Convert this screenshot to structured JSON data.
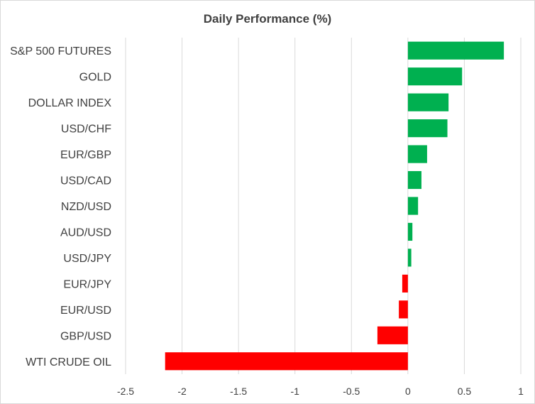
{
  "chart_data": {
    "type": "bar",
    "orientation": "horizontal",
    "title": "Daily Performance (%)",
    "categories": [
      "S&P 500 FUTURES",
      "GOLD",
      "DOLLAR INDEX",
      "USD/CHF",
      "EUR/GBP",
      "USD/CAD",
      "NZD/USD",
      "AUD/USD",
      "USD/JPY",
      "EUR/JPY",
      "EUR/USD",
      "GBP/USD",
      "WTI CRUDE OIL"
    ],
    "values": [
      0.85,
      0.48,
      0.36,
      0.35,
      0.17,
      0.12,
      0.09,
      0.04,
      0.03,
      -0.05,
      -0.08,
      -0.27,
      -2.15
    ],
    "xlim": [
      -2.5,
      1
    ],
    "xticks": [
      "-2.5",
      "-2",
      "-1.5",
      "-1",
      "-0.5",
      "0",
      "0.5",
      "1"
    ],
    "grid": true,
    "legend": "none",
    "colors": {
      "positive": "#00b050",
      "negative": "#ff0000"
    }
  }
}
